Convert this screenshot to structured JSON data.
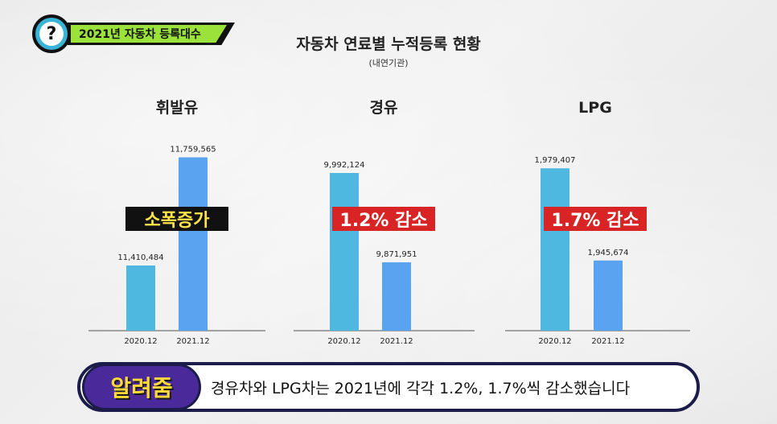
{
  "header": {
    "tag_label": "2021년 자동차 등록대수",
    "icon": "question-icon",
    "title": "자동차 연료별 누적등록 현황",
    "subtitle": "(내연기관)"
  },
  "caption": {
    "label": "알려줌",
    "text": "경유차와 LPG차는 2021년에  각각 1.2%, 1.7%씩 감소했습니다"
  },
  "colors": {
    "bar_2020": "#4fb8e0",
    "bar_2021": "#5aa3f0",
    "callout_increase_bg": "#111111",
    "callout_increase_text": "#ffe54a",
    "callout_decrease_bg": "#d82424",
    "callout_decrease_text": "#ffffff",
    "tag_green": "#9be33a"
  },
  "chart_data": [
    {
      "type": "bar",
      "title": "휘발유",
      "categories": [
        "2020.12",
        "2021.12"
      ],
      "values": [
        11410484,
        11759565
      ],
      "value_labels": [
        "11,410,484",
        "11,759,565"
      ],
      "ylim": [
        11200000,
        11800000
      ],
      "callout": "소폭증가",
      "callout_style": "increase"
    },
    {
      "type": "bar",
      "title": "경유",
      "categories": [
        "2020.12",
        "2021.12"
      ],
      "values": [
        9992124,
        9871951
      ],
      "value_labels": [
        "9,992,124",
        "9,871,951"
      ],
      "ylim": [
        9780000,
        10030000
      ],
      "callout": "1.2% 감소",
      "callout_style": "decrease"
    },
    {
      "type": "bar",
      "title": "LPG",
      "categories": [
        "2020.12",
        "2021.12"
      ],
      "values": [
        1979407,
        1945674
      ],
      "value_labels": [
        "1,979,407",
        "1,945,674"
      ],
      "ylim": [
        1920000,
        1988000
      ],
      "callout": "1.7% 감소",
      "callout_style": "decrease"
    }
  ]
}
